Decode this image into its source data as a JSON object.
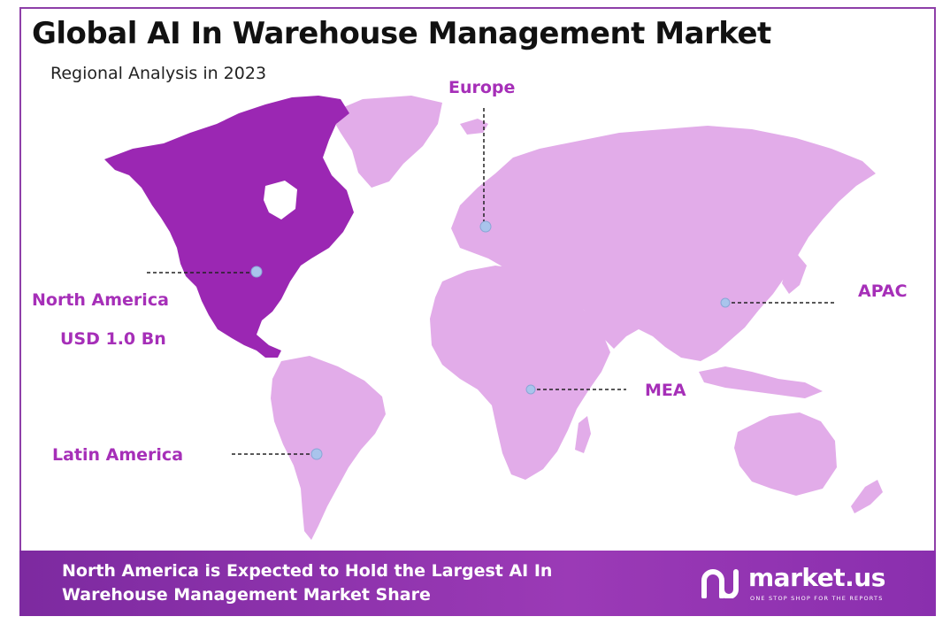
{
  "header": {
    "title": "Global AI In Warehouse Management Market",
    "subtitle": "Regional Analysis in 2023"
  },
  "regions": [
    {
      "name": "North America",
      "value": "USD 1.0 Bn",
      "color": "#9b27b3",
      "highlight": true
    },
    {
      "name": "Europe",
      "value": "",
      "color": "#e2ace9",
      "highlight": false
    },
    {
      "name": "APAC",
      "value": "",
      "color": "#e2ace9",
      "highlight": false
    },
    {
      "name": "MEA",
      "value": "",
      "color": "#e2ace9",
      "highlight": false
    },
    {
      "name": "Latin America",
      "value": "",
      "color": "#e2ace9",
      "highlight": false
    }
  ],
  "banner": {
    "text": "North America is Expected to Hold the Largest AI In Warehouse Management Market Share"
  },
  "logo": {
    "name": "market.us",
    "tagline": "ONE STOP SHOP FOR THE REPORTS"
  },
  "colors": {
    "accent": "#a62fb8",
    "highlight_region": "#9b27b3",
    "other_regions": "#e2ace9",
    "marker": "#a9c4ec",
    "banner": "#8a2fae"
  }
}
